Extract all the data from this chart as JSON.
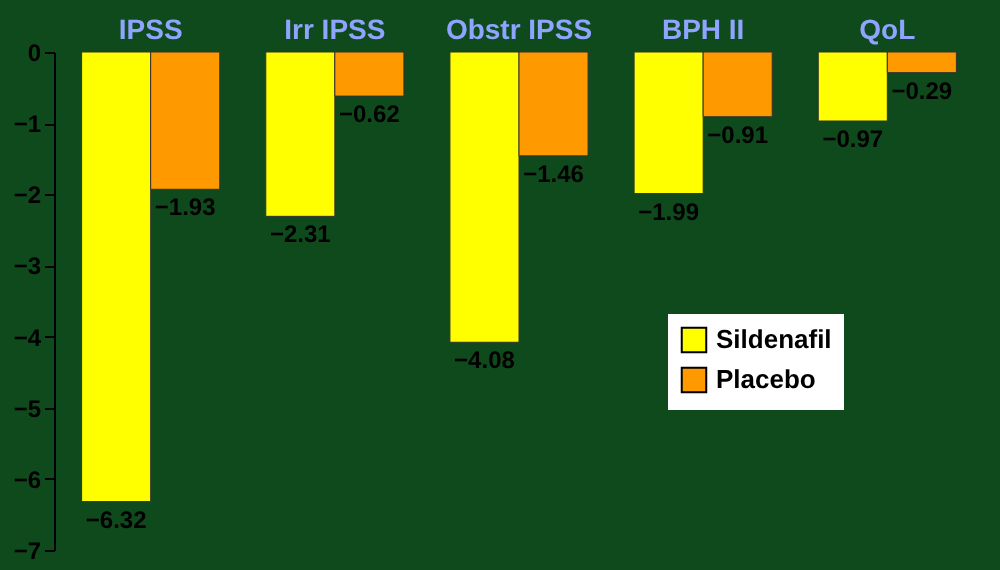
{
  "chart_data": {
    "type": "bar",
    "categories": [
      "IPSS",
      "Irr IPSS",
      "Obstr IPSS",
      "BPH II",
      "QoL"
    ],
    "series": [
      {
        "name": "Sildenafil",
        "color": "#ffff00",
        "values": [
          -6.32,
          -2.31,
          -4.08,
          -1.99,
          -0.97
        ]
      },
      {
        "name": "Placebo",
        "color": "#ff9900",
        "values": [
          -1.93,
          -0.62,
          -1.46,
          -0.91,
          -0.29
        ]
      }
    ],
    "ylim": [
      -7,
      0
    ],
    "yticks": [
      -7,
      -6,
      -5,
      -4,
      -3,
      -2,
      -1,
      0
    ],
    "data_labels": true,
    "legend": "bottom right"
  }
}
